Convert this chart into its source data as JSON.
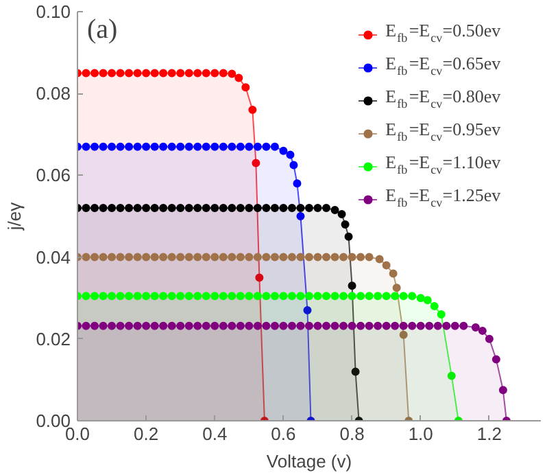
{
  "chart_data": {
    "type": "area",
    "xlabel": "Voltage (v)",
    "ylabel": "j/eγ",
    "annotations": [
      "(a)"
    ],
    "xlim": [
      0,
      1.35
    ],
    "ylim": [
      0,
      0.1
    ],
    "xticks": [
      {
        "value": 0,
        "label": "0.0"
      },
      {
        "value": 0.2,
        "label": "0.2"
      },
      {
        "value": 0.4,
        "label": "0.4"
      },
      {
        "value": 0.6,
        "label": "0.6"
      },
      {
        "value": 0.8,
        "label": "0.8"
      },
      {
        "value": 1.0,
        "label": "1.0"
      },
      {
        "value": 1.2,
        "label": "1.2"
      }
    ],
    "yticks": [
      {
        "value": 0,
        "label": "0.00"
      },
      {
        "value": 0.02,
        "label": "0.02"
      },
      {
        "value": 0.04,
        "label": "0.04"
      },
      {
        "value": 0.06,
        "label": "0.06"
      },
      {
        "value": 0.08,
        "label": "0.08"
      },
      {
        "value": 0.1,
        "label": "0.10"
      }
    ],
    "grid": false,
    "legend": "top right",
    "marker": "circle",
    "line_style": "solid",
    "series": [
      {
        "name": "E$_{fb}$=E$_{cv}$=0.50ev",
        "color": "#ff0000",
        "x": [
          0,
          0.025,
          0.05,
          0.075,
          0.1,
          0.125,
          0.15,
          0.175,
          0.2,
          0.225,
          0.25,
          0.275,
          0.3,
          0.325,
          0.35,
          0.375,
          0.4,
          0.425,
          0.45,
          0.47,
          0.49,
          0.51,
          0.52,
          0.53,
          0.545
        ],
        "values": [
          0.085,
          0.085,
          0.085,
          0.085,
          0.085,
          0.085,
          0.085,
          0.085,
          0.085,
          0.085,
          0.085,
          0.085,
          0.085,
          0.085,
          0.085,
          0.085,
          0.085,
          0.085,
          0.0848,
          0.0838,
          0.0815,
          0.076,
          0.063,
          0.035,
          0
        ]
      },
      {
        "name": "E$_{fb}$=E$_{cv}$=0.65ev",
        "color": "#0000ff",
        "x": [
          0,
          0.025,
          0.05,
          0.075,
          0.1,
          0.125,
          0.15,
          0.175,
          0.2,
          0.225,
          0.25,
          0.275,
          0.3,
          0.325,
          0.35,
          0.375,
          0.4,
          0.425,
          0.45,
          0.475,
          0.5,
          0.525,
          0.55,
          0.575,
          0.6,
          0.62,
          0.63,
          0.64,
          0.65,
          0.67,
          0.68
        ],
        "values": [
          0.067,
          0.067,
          0.067,
          0.067,
          0.067,
          0.067,
          0.067,
          0.067,
          0.067,
          0.067,
          0.067,
          0.067,
          0.067,
          0.067,
          0.067,
          0.067,
          0.067,
          0.067,
          0.067,
          0.067,
          0.067,
          0.067,
          0.067,
          0.067,
          0.066,
          0.065,
          0.0625,
          0.058,
          0.05,
          0.027,
          0
        ]
      },
      {
        "name": "E$_{fb}$=E$_{cv}$=0.80ev",
        "color": "#000000",
        "x": [
          0,
          0.025,
          0.05,
          0.075,
          0.1,
          0.125,
          0.15,
          0.175,
          0.2,
          0.225,
          0.25,
          0.275,
          0.3,
          0.325,
          0.35,
          0.375,
          0.4,
          0.425,
          0.45,
          0.475,
          0.5,
          0.525,
          0.55,
          0.575,
          0.6,
          0.625,
          0.65,
          0.675,
          0.7,
          0.725,
          0.75,
          0.77,
          0.78,
          0.79,
          0.8,
          0.81,
          0.82
        ],
        "values": [
          0.052,
          0.052,
          0.052,
          0.052,
          0.052,
          0.052,
          0.052,
          0.052,
          0.052,
          0.052,
          0.052,
          0.052,
          0.052,
          0.052,
          0.052,
          0.052,
          0.052,
          0.052,
          0.052,
          0.052,
          0.052,
          0.052,
          0.052,
          0.052,
          0.052,
          0.052,
          0.052,
          0.052,
          0.052,
          0.052,
          0.0515,
          0.0505,
          0.048,
          0.045,
          0.033,
          0.012,
          0
        ]
      },
      {
        "name": "E$_{fb}$=E$_{cv}$=0.95ev",
        "color": "#a0724a",
        "x": [
          0,
          0.025,
          0.05,
          0.075,
          0.1,
          0.125,
          0.15,
          0.175,
          0.2,
          0.225,
          0.25,
          0.275,
          0.3,
          0.325,
          0.35,
          0.375,
          0.4,
          0.425,
          0.45,
          0.475,
          0.5,
          0.525,
          0.55,
          0.575,
          0.6,
          0.625,
          0.65,
          0.675,
          0.7,
          0.725,
          0.75,
          0.775,
          0.8,
          0.825,
          0.85,
          0.88,
          0.9,
          0.92,
          0.93,
          0.95,
          0.965
        ],
        "values": [
          0.04,
          0.04,
          0.04,
          0.04,
          0.04,
          0.04,
          0.04,
          0.04,
          0.04,
          0.04,
          0.04,
          0.04,
          0.04,
          0.04,
          0.04,
          0.04,
          0.04,
          0.04,
          0.04,
          0.04,
          0.04,
          0.04,
          0.04,
          0.04,
          0.04,
          0.04,
          0.04,
          0.04,
          0.04,
          0.04,
          0.04,
          0.04,
          0.04,
          0.04,
          0.04,
          0.0395,
          0.038,
          0.036,
          0.0325,
          0.021,
          0
        ]
      },
      {
        "name": "E$_{fb}$=E$_{cv}$=1.10ev",
        "color": "#00ff00",
        "x": [
          0,
          0.025,
          0.05,
          0.075,
          0.1,
          0.125,
          0.15,
          0.175,
          0.2,
          0.225,
          0.25,
          0.275,
          0.3,
          0.325,
          0.35,
          0.375,
          0.4,
          0.425,
          0.45,
          0.475,
          0.5,
          0.525,
          0.55,
          0.575,
          0.6,
          0.625,
          0.65,
          0.675,
          0.7,
          0.725,
          0.75,
          0.775,
          0.8,
          0.825,
          0.85,
          0.875,
          0.9,
          0.925,
          0.95,
          0.975,
          1.0,
          1.02,
          1.04,
          1.06,
          1.09,
          1.11
        ],
        "values": [
          0.0305,
          0.0305,
          0.0305,
          0.0305,
          0.0305,
          0.0305,
          0.0305,
          0.0305,
          0.0305,
          0.0305,
          0.0305,
          0.0305,
          0.0305,
          0.0305,
          0.0305,
          0.0305,
          0.0305,
          0.0305,
          0.0305,
          0.0305,
          0.0305,
          0.0305,
          0.0305,
          0.0305,
          0.0305,
          0.0305,
          0.0305,
          0.0305,
          0.0305,
          0.0305,
          0.0305,
          0.0305,
          0.0305,
          0.0305,
          0.0305,
          0.0305,
          0.0305,
          0.0305,
          0.0305,
          0.0305,
          0.03,
          0.0295,
          0.028,
          0.026,
          0.011,
          0
        ]
      },
      {
        "name": "E$_{fb}$=E$_{cv}$=1.25ev",
        "color": "#800080",
        "x": [
          0,
          0.025,
          0.05,
          0.075,
          0.1,
          0.125,
          0.15,
          0.175,
          0.2,
          0.225,
          0.25,
          0.275,
          0.3,
          0.325,
          0.35,
          0.375,
          0.4,
          0.425,
          0.45,
          0.475,
          0.5,
          0.525,
          0.55,
          0.575,
          0.6,
          0.625,
          0.65,
          0.675,
          0.7,
          0.725,
          0.75,
          0.775,
          0.8,
          0.825,
          0.85,
          0.875,
          0.9,
          0.925,
          0.95,
          0.975,
          1.0,
          1.025,
          1.05,
          1.075,
          1.1,
          1.125,
          1.16,
          1.18,
          1.2,
          1.22,
          1.24,
          1.25
        ],
        "values": [
          0.0232,
          0.0232,
          0.0232,
          0.0232,
          0.0232,
          0.0232,
          0.0232,
          0.0232,
          0.0232,
          0.0232,
          0.0232,
          0.0232,
          0.0232,
          0.0232,
          0.0232,
          0.0232,
          0.0232,
          0.0232,
          0.0232,
          0.0232,
          0.0232,
          0.0232,
          0.0232,
          0.0232,
          0.0232,
          0.0232,
          0.0232,
          0.0232,
          0.0232,
          0.0232,
          0.0232,
          0.0232,
          0.0232,
          0.0232,
          0.0232,
          0.0232,
          0.0232,
          0.0232,
          0.0232,
          0.0232,
          0.0232,
          0.0232,
          0.0232,
          0.0232,
          0.0232,
          0.0232,
          0.0228,
          0.022,
          0.02,
          0.015,
          0.0075,
          0
        ]
      }
    ]
  }
}
